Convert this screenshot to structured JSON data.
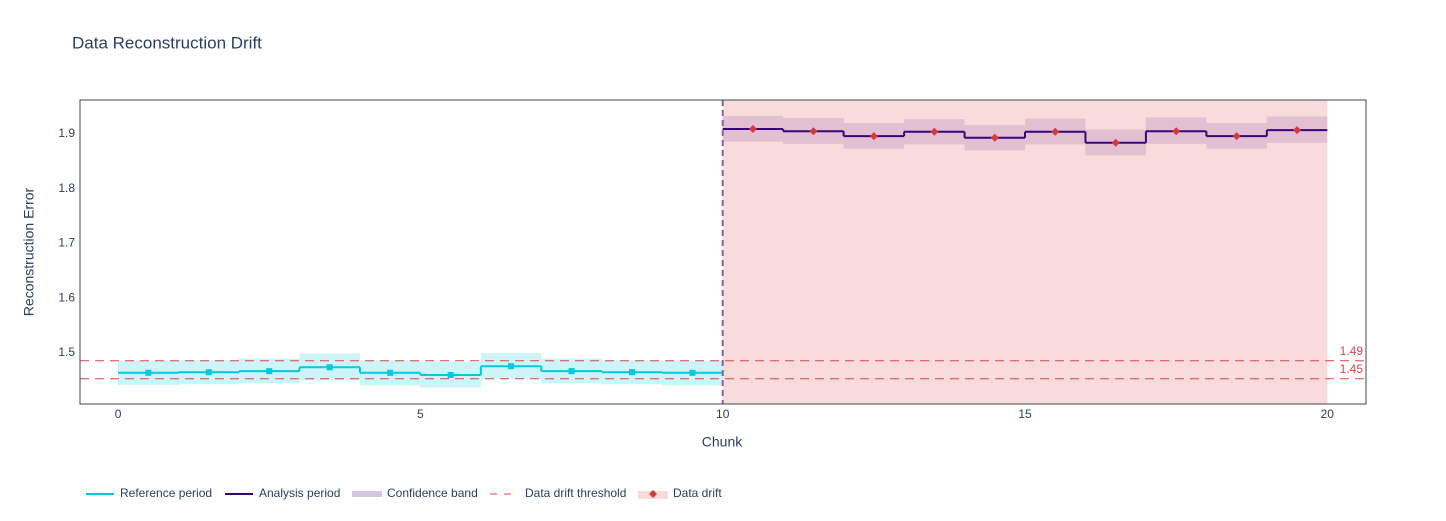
{
  "chart_data": {
    "type": "step",
    "title": "Data Reconstruction Drift",
    "x_label": "Chunk",
    "y_label": "Reconstruction Error",
    "xlim": [
      -0.63,
      20.64
    ],
    "ylim": [
      1.407,
      1.962
    ],
    "xticks": [
      0,
      5,
      10,
      15,
      20
    ],
    "yticks": [
      1.5,
      1.6,
      1.7,
      1.8,
      1.9
    ],
    "series": [
      {
        "name": "Reference period",
        "color": "#00c9e0",
        "band_color": "#00c9e0",
        "marker": "square",
        "x": [
          0,
          1,
          2,
          3,
          4,
          5,
          6,
          7,
          8,
          9
        ],
        "values": [
          1.464,
          1.465,
          1.467,
          1.474,
          1.464,
          1.46,
          1.476,
          1.467,
          1.465,
          1.464
        ],
        "lower": [
          1.442,
          1.443,
          1.445,
          1.45,
          1.441,
          1.437,
          1.453,
          1.445,
          1.443,
          1.441
        ],
        "upper": [
          1.486,
          1.487,
          1.49,
          1.499,
          1.487,
          1.484,
          1.5,
          1.49,
          1.487,
          1.486
        ]
      },
      {
        "name": "Analysis period",
        "color": "#3b0280",
        "band_color": "#8a4fa8",
        "marker": "diamond",
        "x": [
          10,
          11,
          12,
          13,
          14,
          15,
          16,
          17,
          18,
          19
        ],
        "values": [
          1.909,
          1.905,
          1.896,
          1.904,
          1.893,
          1.904,
          1.884,
          1.905,
          1.896,
          1.907
        ],
        "lower": [
          1.886,
          1.882,
          1.873,
          1.881,
          1.87,
          1.881,
          1.861,
          1.882,
          1.873,
          1.884
        ],
        "upper": [
          1.933,
          1.929,
          1.92,
          1.927,
          1.916,
          1.928,
          1.908,
          1.93,
          1.92,
          1.932
        ]
      }
    ],
    "band_name": "Confidence band",
    "band_legend_color": "#d6c6e6",
    "thresholds": [
      {
        "value": 1.486,
        "label": "1.49"
      },
      {
        "value": 1.453,
        "label": "1.45"
      }
    ],
    "threshold_name": "Data drift threshold",
    "threshold_color": "#dd4444",
    "drift_name": "Data drift",
    "drift_color": "#d62728",
    "drift_xlim": [
      10,
      20
    ],
    "drift_marker_color": "#d6393a"
  }
}
